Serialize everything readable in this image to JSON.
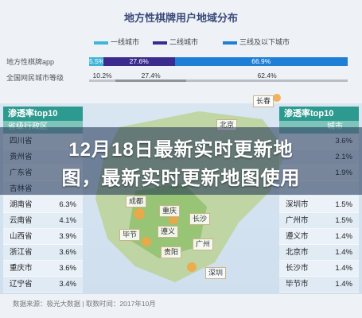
{
  "chart_data": {
    "type": "bar",
    "title": "地方性棋牌用户地域分布",
    "legend": [
      "一线城市",
      "二线城市",
      "三线及以下城市"
    ],
    "colors": [
      "#3fb6d9",
      "#3c2b8f",
      "#1f7fd6"
    ],
    "rows": [
      {
        "label": "地方性棋牌app",
        "values": [
          5.5,
          27.6,
          66.9
        ]
      },
      {
        "label": "全国网民城市等级",
        "values": [
          10.2,
          27.4,
          62.4
        ]
      }
    ],
    "value_suffix": "%"
  },
  "left_panel": {
    "title": "渗透率top10",
    "subtitle": "省级行政区",
    "rows": [
      {
        "name": "四川省",
        "value": ""
      },
      {
        "name": "贵州省",
        "value": ""
      },
      {
        "name": "广东省",
        "value": ""
      },
      {
        "name": "吉林省",
        "value": ""
      },
      {
        "name": "湖南省",
        "value": "6.3%"
      },
      {
        "name": "云南省",
        "value": "4.1%"
      },
      {
        "name": "山西省",
        "value": "3.9%"
      },
      {
        "name": "浙江省",
        "value": "3.6%"
      },
      {
        "name": "重庆市",
        "value": "3.6%"
      },
      {
        "name": "辽宁省",
        "value": "3.4%"
      }
    ]
  },
  "right_panel": {
    "title": "渗透率top10",
    "subtitle": "城市",
    "rows": [
      {
        "name": "",
        "value": "3.6%"
      },
      {
        "name": "",
        "value": "2.1%"
      },
      {
        "name": "",
        "value": "1.9%"
      },
      {
        "name": "",
        "value": ""
      },
      {
        "name": "深圳市",
        "value": "1.5%"
      },
      {
        "name": "广州市",
        "value": "1.5%"
      },
      {
        "name": "遵义市",
        "value": "1.4%"
      },
      {
        "name": "北京市",
        "value": "1.4%"
      },
      {
        "name": "长沙市",
        "value": "1.4%"
      },
      {
        "name": "毕节市",
        "value": "1.4%"
      }
    ]
  },
  "map_cities": [
    "长春",
    "北京",
    "成都",
    "重庆",
    "长沙",
    "毕节",
    "遵义",
    "贵阳",
    "广州",
    "深圳"
  ],
  "overlay": {
    "line1": "12月18日最新实时更新地",
    "line2": "图，最新实时更新地图使用"
  },
  "source": "数据来源：极光大数据 | 取数时间：2017年10月"
}
